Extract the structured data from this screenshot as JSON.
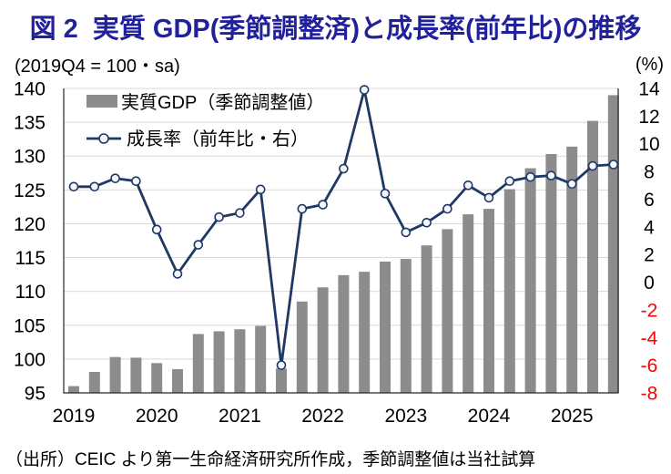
{
  "title": "図 2  実質 GDP(季節調整済)と成長率(前年比)の推移",
  "axis_note_left": "(2019Q4 = 100・sa)",
  "axis_note_right": "(%)",
  "footer": "（出所）CEIC より第一生命経済研究所作成，季節調整値は当社試算",
  "colors": {
    "title": "#21219b",
    "bar": "#8c8c8c",
    "line": "#1f3864",
    "marker_fill": "#f4f7fc",
    "grid": "#d9d9d9",
    "axis": "#262626",
    "negative_label": "#ff0000",
    "text": "#000000"
  },
  "chart_data": {
    "type": "bar+line",
    "quarters": [
      "2019Q1",
      "2019Q2",
      "2019Q3",
      "2019Q4",
      "2020Q1",
      "2020Q2",
      "2020Q3",
      "2020Q4",
      "2021Q1",
      "2021Q2",
      "2021Q3",
      "2021Q4",
      "2022Q1",
      "2022Q2",
      "2022Q3",
      "2022Q4",
      "2023Q1",
      "2023Q2",
      "2023Q3",
      "2023Q4",
      "2024Q1",
      "2024Q2",
      "2024Q3",
      "2024Q4",
      "2025Q1",
      "2025Q2",
      "2025Q3"
    ],
    "x_year_labels": [
      "2019",
      "2020",
      "2021",
      "2022",
      "2023",
      "2024",
      "2025"
    ],
    "series": [
      {
        "name": "実質GDP（季節調整値）",
        "type": "bar",
        "axis": "left",
        "values": [
          96.0,
          98.1,
          100.3,
          100.2,
          99.4,
          98.5,
          103.7,
          104.1,
          104.4,
          104.9,
          98.6,
          108.5,
          110.6,
          112.4,
          112.9,
          114.4,
          114.8,
          116.8,
          119.2,
          121.4,
          122.2,
          125.1,
          128.2,
          130.3,
          131.4,
          135.2,
          139.0
        ]
      },
      {
        "name": "成長率（前年比・右）",
        "type": "line",
        "axis": "right",
        "values": [
          6.9,
          6.9,
          7.5,
          7.3,
          3.8,
          0.6,
          2.7,
          4.7,
          5.0,
          6.7,
          -6.0,
          5.3,
          5.6,
          8.2,
          13.9,
          6.4,
          3.6,
          4.3,
          5.3,
          7.0,
          6.1,
          7.3,
          7.6,
          7.7,
          7.1,
          8.4,
          8.5
        ]
      }
    ],
    "left_axis": {
      "min": 95,
      "max": 140,
      "step": 5
    },
    "right_axis": {
      "min": -8,
      "max": 14,
      "step": 2
    },
    "legend_position": "top-left-inside",
    "grid": true
  }
}
